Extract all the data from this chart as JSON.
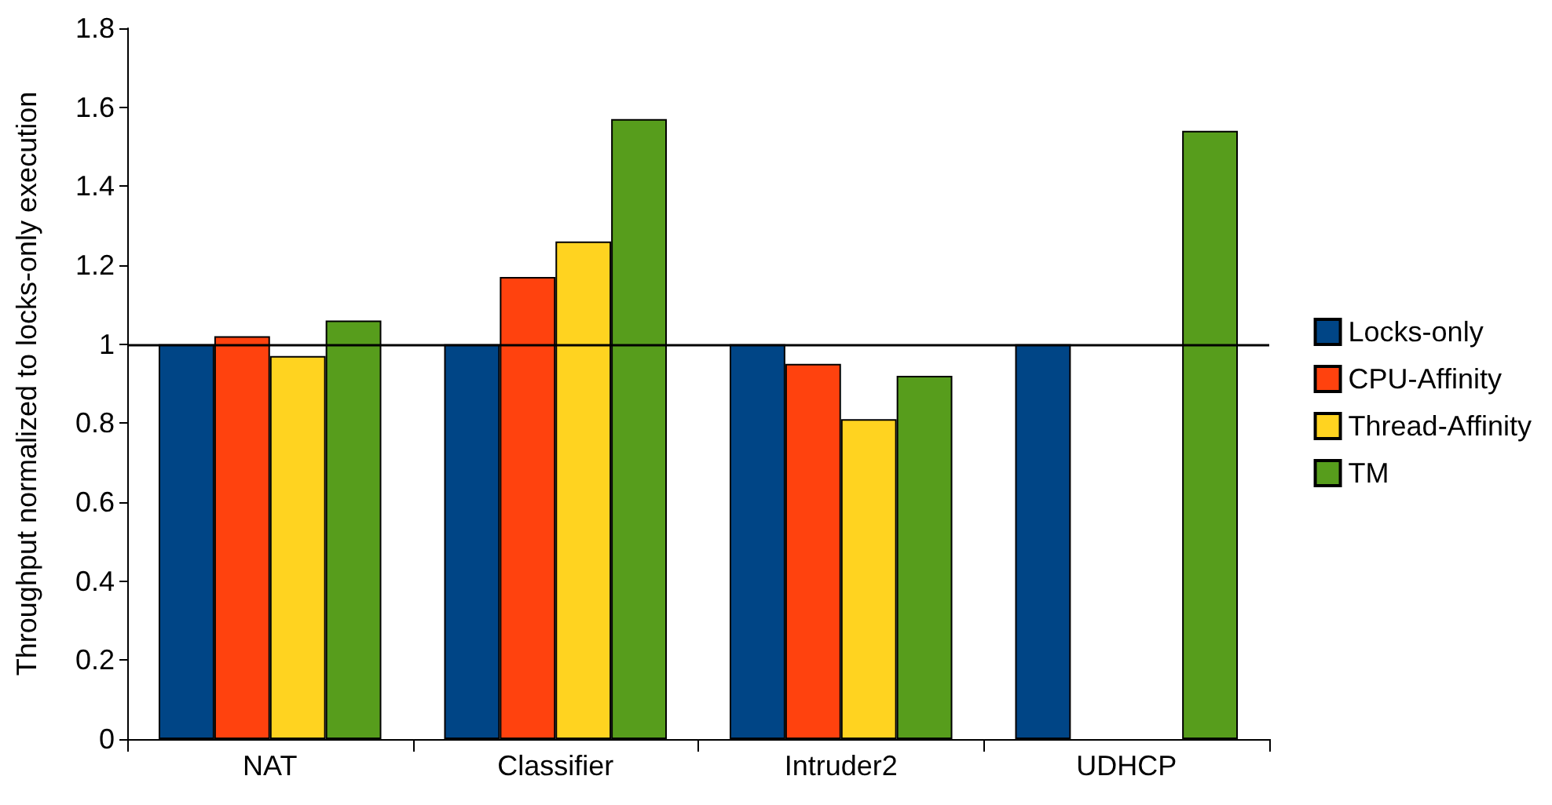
{
  "chart_data": {
    "type": "bar",
    "ylabel": "Throughput normalized to locks-only execution",
    "categories": [
      "NAT",
      "Classifier",
      "Intruder2",
      "UDHCP"
    ],
    "series": [
      {
        "name": "Locks-only",
        "color": "#004586",
        "values": [
          1,
          1,
          1,
          1
        ]
      },
      {
        "name": "CPU-Affinity",
        "color": "#ff420e",
        "values": [
          1.02,
          1.17,
          0.95,
          null
        ]
      },
      {
        "name": "Thread-Affinity",
        "color": "#ffd320",
        "values": [
          0.97,
          1.26,
          0.81,
          null
        ]
      },
      {
        "name": "TM",
        "color": "#579d1c",
        "values": [
          1.06,
          1.57,
          0.92,
          1.54
        ]
      }
    ],
    "ylim": [
      0,
      1.8
    ],
    "yticks": [
      0,
      0.2,
      0.4,
      0.6,
      0.8,
      1,
      1.2,
      1.4,
      1.6,
      1.8
    ],
    "ref_lines": [
      {
        "axis": "y",
        "value": 1,
        "color": "#000000"
      }
    ],
    "grid": false,
    "legend": "right"
  }
}
